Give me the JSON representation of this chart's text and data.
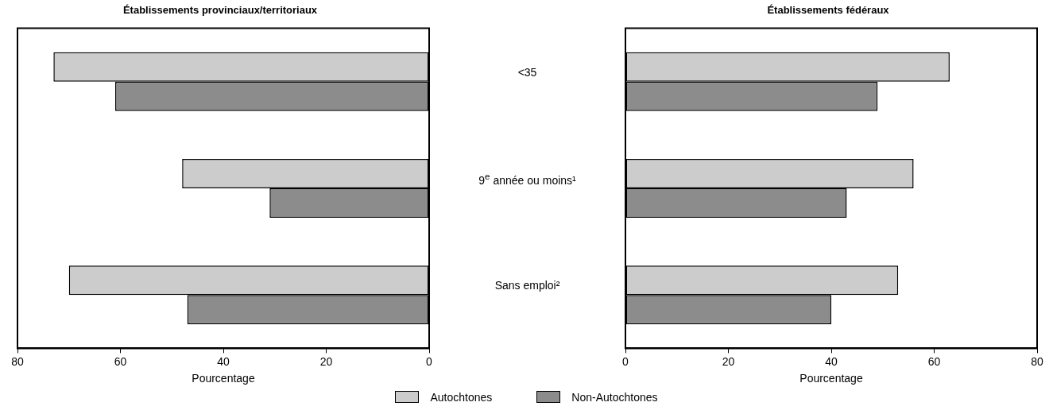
{
  "chart_data": [
    {
      "type": "bar",
      "orientation": "horizontal",
      "title": "Établissements provinciaux/territoriaux",
      "xlabel": "Pourcentage",
      "categories": [
        "<35",
        "9$^{e}$ année ou moins¹",
        "Sans emploi²"
      ],
      "series": [
        {
          "name": "Autochtones",
          "color": "#cccccc",
          "values": [
            73,
            48,
            70
          ]
        },
        {
          "name": "Non-Autochtones",
          "color": "#8c8c8c",
          "values": [
            61,
            31,
            47
          ]
        }
      ],
      "xlim": [
        80,
        0
      ],
      "xticks": [
        80,
        60,
        40,
        20,
        0
      ],
      "legend": "bottom",
      "grid": false
    },
    {
      "type": "bar",
      "orientation": "horizontal",
      "title": "Établissements fédéraux",
      "xlabel": "Pourcentage",
      "categories": [
        null,
        null,
        null
      ],
      "series": [
        {
          "color": "#cccccc",
          "values": [
            63,
            56,
            53
          ]
        },
        {
          "color": "#8c8c8c",
          "values": [
            49,
            43,
            40
          ]
        }
      ],
      "xlim": [
        0,
        80
      ],
      "xticks": [
        0,
        20,
        40,
        60,
        80
      ],
      "tick_labels": "x",
      "grid": false
    }
  ]
}
